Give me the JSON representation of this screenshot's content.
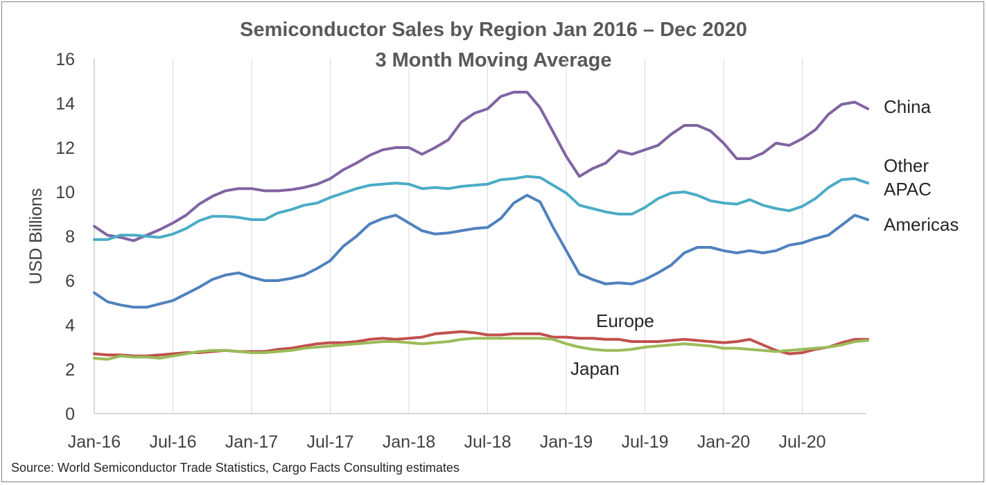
{
  "chart_data": {
    "type": "line",
    "title": "Semiconductor Sales by Region Jan 2016 – Dec 2020",
    "subtitle": "3 Month Moving Average",
    "xlabel": "",
    "ylabel": "USD Billions",
    "ylim": [
      0,
      16
    ],
    "yticks": [
      0,
      2,
      4,
      6,
      8,
      10,
      12,
      14,
      16
    ],
    "x_tick_labels": [
      "Jan-16",
      "Jul-16",
      "Jan-17",
      "Jul-17",
      "Jan-18",
      "Jul-18",
      "Jan-19",
      "Jul-19",
      "Jan-20",
      "Jul-20"
    ],
    "x_start": "2016-01",
    "x_end": "2020-12",
    "grid": "vertical",
    "legend": "none (direct labels at right)",
    "series": [
      {
        "name": "China",
        "color": "#8064a2",
        "values": [
          8.45,
          8.05,
          7.95,
          7.8,
          8.05,
          8.3,
          8.6,
          8.95,
          9.45,
          9.8,
          10.05,
          10.15,
          10.15,
          10.05,
          10.05,
          10.1,
          10.2,
          10.35,
          10.6,
          11.0,
          11.3,
          11.65,
          11.9,
          12.0,
          12.0,
          11.7,
          12.0,
          12.35,
          13.15,
          13.55,
          13.75,
          14.3,
          14.5,
          14.5,
          13.8,
          12.7,
          11.6,
          10.7,
          11.05,
          11.3,
          11.85,
          11.7,
          11.9,
          12.1,
          12.6,
          13.0,
          13.0,
          12.75,
          12.2,
          11.5,
          11.5,
          11.75,
          12.2,
          12.1,
          12.4,
          12.8,
          13.5,
          13.95,
          14.05,
          13.75
        ]
      },
      {
        "name": "Other APAC",
        "color": "#4bacc6",
        "values": [
          7.85,
          7.85,
          8.05,
          8.05,
          8.0,
          7.95,
          8.1,
          8.35,
          8.7,
          8.9,
          8.9,
          8.85,
          8.75,
          8.75,
          9.05,
          9.2,
          9.4,
          9.5,
          9.75,
          9.95,
          10.15,
          10.3,
          10.35,
          10.4,
          10.35,
          10.15,
          10.2,
          10.15,
          10.25,
          10.3,
          10.35,
          10.55,
          10.6,
          10.7,
          10.65,
          10.3,
          9.95,
          9.4,
          9.25,
          9.1,
          9.0,
          9.0,
          9.3,
          9.7,
          9.95,
          10.0,
          9.85,
          9.6,
          9.5,
          9.45,
          9.65,
          9.4,
          9.25,
          9.15,
          9.35,
          9.7,
          10.2,
          10.55,
          10.6,
          10.4
        ]
      },
      {
        "name": "Americas",
        "color": "#4f81bd",
        "values": [
          5.45,
          5.05,
          4.9,
          4.8,
          4.8,
          4.95,
          5.1,
          5.4,
          5.7,
          6.05,
          6.25,
          6.35,
          6.15,
          6.0,
          6.0,
          6.1,
          6.25,
          6.55,
          6.9,
          7.55,
          8.0,
          8.55,
          8.8,
          8.95,
          8.6,
          8.25,
          8.1,
          8.15,
          8.25,
          8.35,
          8.4,
          8.8,
          9.5,
          9.85,
          9.55,
          8.4,
          7.35,
          6.3,
          6.05,
          5.85,
          5.9,
          5.85,
          6.05,
          6.35,
          6.7,
          7.25,
          7.5,
          7.5,
          7.35,
          7.25,
          7.35,
          7.25,
          7.35,
          7.6,
          7.7,
          7.9,
          8.05,
          8.5,
          8.95,
          8.75
        ]
      },
      {
        "name": "Europe",
        "color": "#c0504d",
        "values": [
          2.7,
          2.65,
          2.65,
          2.6,
          2.6,
          2.65,
          2.7,
          2.75,
          2.75,
          2.8,
          2.85,
          2.8,
          2.8,
          2.8,
          2.9,
          2.95,
          3.05,
          3.15,
          3.2,
          3.2,
          3.25,
          3.35,
          3.4,
          3.35,
          3.4,
          3.45,
          3.6,
          3.65,
          3.7,
          3.65,
          3.55,
          3.55,
          3.6,
          3.6,
          3.6,
          3.45,
          3.45,
          3.4,
          3.4,
          3.35,
          3.35,
          3.25,
          3.25,
          3.25,
          3.3,
          3.35,
          3.3,
          3.25,
          3.2,
          3.25,
          3.35,
          3.1,
          2.85,
          2.7,
          2.75,
          2.9,
          3.0,
          3.2,
          3.35,
          3.35
        ]
      },
      {
        "name": "Japan",
        "color": "#9bbb59",
        "values": [
          2.5,
          2.45,
          2.6,
          2.55,
          2.55,
          2.5,
          2.6,
          2.7,
          2.8,
          2.85,
          2.85,
          2.8,
          2.75,
          2.75,
          2.8,
          2.85,
          2.95,
          3.0,
          3.05,
          3.1,
          3.15,
          3.2,
          3.25,
          3.25,
          3.2,
          3.15,
          3.2,
          3.25,
          3.35,
          3.4,
          3.4,
          3.4,
          3.4,
          3.4,
          3.4,
          3.35,
          3.15,
          3.0,
          2.9,
          2.85,
          2.85,
          2.9,
          3.0,
          3.05,
          3.1,
          3.15,
          3.1,
          3.05,
          2.95,
          2.95,
          2.9,
          2.85,
          2.8,
          2.85,
          2.9,
          2.95,
          3.0,
          3.1,
          3.25,
          3.3
        ]
      }
    ],
    "series_labels": {
      "China": [
        "China"
      ],
      "Other APAC": [
        "Other",
        "APAC"
      ],
      "Americas": [
        "Americas"
      ],
      "Europe": [
        "Europe"
      ],
      "Japan": [
        "Japan"
      ]
    }
  },
  "source_note": "Source: World Semiconductor Trade Statistics, Cargo Facts Consulting estimates"
}
